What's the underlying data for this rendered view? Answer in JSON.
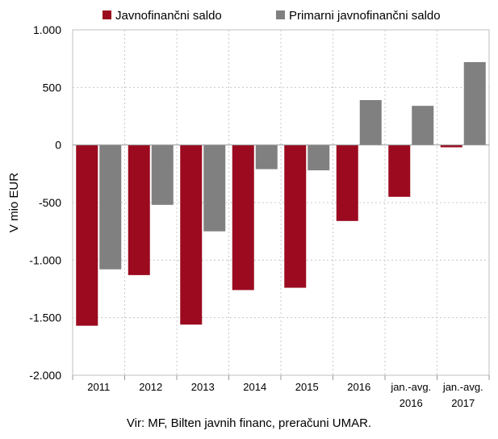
{
  "chart_data": {
    "type": "bar",
    "categories": [
      "2011",
      "2012",
      "2013",
      "2014",
      "2015",
      "2016",
      "jan.-avg. 2016",
      "jan.-avg. 2017"
    ],
    "category_lines": [
      [
        "2011"
      ],
      [
        "2012"
      ],
      [
        "2013"
      ],
      [
        "2014"
      ],
      [
        "2015"
      ],
      [
        "2016"
      ],
      [
        "jan.-avg.",
        "2016"
      ],
      [
        "jan.-avg.",
        "2017"
      ]
    ],
    "series": [
      {
        "name": "Javnofinančni saldo",
        "color": "#9b0a1f",
        "values": [
          -1570,
          -1130,
          -1560,
          -1260,
          -1240,
          -660,
          -450,
          -20
        ]
      },
      {
        "name": "Primarni javnofinančni saldo",
        "color": "#808080",
        "values": [
          -1080,
          -520,
          -750,
          -210,
          -220,
          390,
          340,
          720
        ]
      }
    ],
    "ylabel": "V mio EUR",
    "ylim": [
      -2000,
      1000
    ],
    "yticks": [
      1000,
      500,
      0,
      -500,
      -1000,
      -1500,
      -2000
    ],
    "ytick_labels": [
      "1.000",
      "500",
      "0",
      "-500",
      "-1.000",
      "-1.500",
      "-2.000"
    ],
    "grid": "dashed vertical and horizontal",
    "legend_position": "top"
  },
  "source": "Vir: MF, Bilten javnih financ, preračuni UMAR."
}
